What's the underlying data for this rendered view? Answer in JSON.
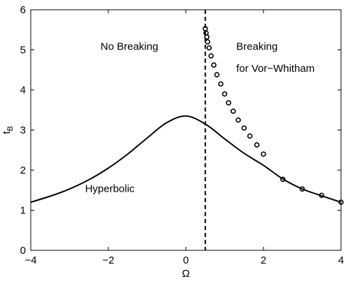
{
  "chart_data": {
    "type": "line",
    "xlabel": "Ω",
    "ylabel": "t",
    "ylabel_sub": "B",
    "xlim": [
      -4,
      4
    ],
    "ylim": [
      0,
      6
    ],
    "xticks": [
      -4,
      -2,
      0,
      2,
      4
    ],
    "yticks": [
      0,
      1,
      2,
      3,
      4,
      5,
      6
    ],
    "xtick_labels": [
      "−4",
      "−2",
      "0",
      "2",
      "4"
    ],
    "ytick_labels": [
      "0",
      "1",
      "2",
      "3",
      "4",
      "5",
      "6"
    ],
    "grid": false,
    "series": [
      {
        "style": "solid",
        "x": [
          -4,
          -3.5,
          -3,
          -2.5,
          -2,
          -1.5,
          -1,
          -0.5,
          0,
          0.5,
          1,
          1.5,
          2,
          2.5,
          3,
          3.5,
          4
        ],
        "y": [
          1.2,
          1.35,
          1.53,
          1.76,
          2.05,
          2.4,
          2.8,
          3.18,
          3.35,
          3.15,
          2.78,
          2.42,
          2.12,
          1.78,
          1.53,
          1.36,
          1.2
        ]
      },
      {
        "style": "markers",
        "marker": "circle",
        "x": [
          0.5,
          0.52,
          0.54,
          0.56,
          0.6,
          0.65,
          0.72,
          0.8,
          0.9,
          1.0,
          1.1,
          1.22,
          1.35,
          1.5,
          1.65,
          1.83,
          2.0,
          2.5,
          3.0,
          3.5,
          4.0
        ],
        "y": [
          5.53,
          5.42,
          5.32,
          5.2,
          5.05,
          4.85,
          4.62,
          4.38,
          4.15,
          3.9,
          3.68,
          3.47,
          3.25,
          3.05,
          2.85,
          2.63,
          2.4,
          1.77,
          1.53,
          1.37,
          1.2
        ]
      }
    ],
    "vline": {
      "x": 0.5,
      "style": "dashed"
    },
    "annotations": [
      {
        "text": "No Breaking",
        "x": -2.2,
        "y": 5.0
      },
      {
        "text": "Breaking",
        "x": 1.3,
        "y": 5.0
      },
      {
        "text": "for Vor−Whitham",
        "x": 1.3,
        "y": 4.45
      },
      {
        "text": "Hyperbolic",
        "x": -2.6,
        "y": 1.45
      }
    ]
  }
}
